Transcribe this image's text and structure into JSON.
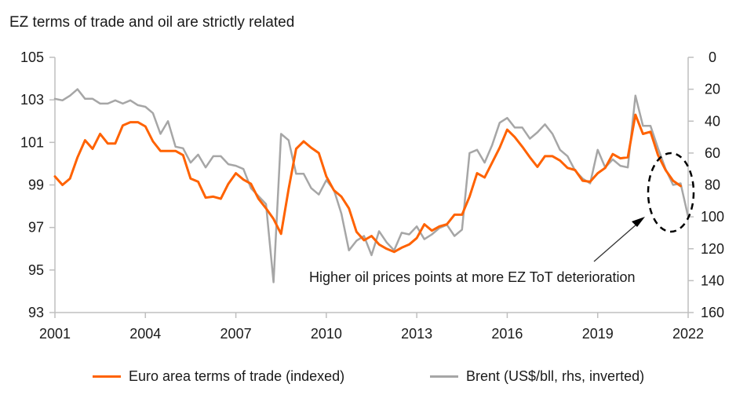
{
  "chart_data": {
    "type": "line",
    "title": "EZ terms of trade and oil are strictly related",
    "x_range": [
      2001,
      2022
    ],
    "x_ticks": [
      "2001",
      "2004",
      "2007",
      "2010",
      "2013",
      "2016",
      "2019",
      "2022"
    ],
    "y_left": {
      "range": [
        93,
        105
      ],
      "ticks": [
        "105",
        "103",
        "101",
        "99",
        "97",
        "95",
        "93"
      ]
    },
    "y_right": {
      "range": [
        0,
        160
      ],
      "inverted": true,
      "ticks": [
        "0",
        "20",
        "40",
        "60",
        "80",
        "100",
        "120",
        "140",
        "160"
      ]
    },
    "grid": false,
    "legend_position": "bottom",
    "series": [
      {
        "name": "Euro area terms of trade (indexed)",
        "axis": "left",
        "color": "#ff6200",
        "x": [
          2001.0,
          2001.25,
          2001.5,
          2001.75,
          2002.0,
          2002.25,
          2002.5,
          2002.75,
          2003.0,
          2003.25,
          2003.5,
          2003.75,
          2004.0,
          2004.25,
          2004.5,
          2004.75,
          2005.0,
          2005.25,
          2005.5,
          2005.75,
          2006.0,
          2006.25,
          2006.5,
          2006.75,
          2007.0,
          2007.25,
          2007.5,
          2007.75,
          2008.0,
          2008.25,
          2008.5,
          2008.75,
          2009.0,
          2009.25,
          2009.5,
          2009.75,
          2010.0,
          2010.25,
          2010.5,
          2010.75,
          2011.0,
          2011.25,
          2011.5,
          2011.75,
          2012.0,
          2012.25,
          2012.5,
          2012.75,
          2013.0,
          2013.25,
          2013.5,
          2013.75,
          2014.0,
          2014.25,
          2014.5,
          2014.75,
          2015.0,
          2015.25,
          2015.5,
          2015.75,
          2016.0,
          2016.25,
          2016.5,
          2016.75,
          2017.0,
          2017.25,
          2017.5,
          2017.75,
          2018.0,
          2018.25,
          2018.5,
          2018.75,
          2019.0,
          2019.25,
          2019.5,
          2019.75,
          2020.0,
          2020.25,
          2020.5,
          2020.75,
          2021.0,
          2021.25,
          2021.5,
          2021.75,
          2022.0
        ],
        "values": [
          99.4,
          99.0,
          99.3,
          100.3,
          101.1,
          100.7,
          101.4,
          100.95,
          100.95,
          101.8,
          101.95,
          101.95,
          101.75,
          101.05,
          100.6,
          100.6,
          100.6,
          100.4,
          99.3,
          99.15,
          98.4,
          98.45,
          98.35,
          99.05,
          99.55,
          99.25,
          99.05,
          98.35,
          97.9,
          97.4,
          96.7,
          98.8,
          100.7,
          101.05,
          100.75,
          100.5,
          99.4,
          98.75,
          98.45,
          97.9,
          96.8,
          96.4,
          96.6,
          96.2,
          96.0,
          95.85,
          96.05,
          96.2,
          96.5,
          97.15,
          96.85,
          97.05,
          97.15,
          97.6,
          97.6,
          98.45,
          99.55,
          99.35,
          100.05,
          100.75,
          101.6,
          101.25,
          100.8,
          100.3,
          99.85,
          100.35,
          100.35,
          100.15,
          99.8,
          99.7,
          99.2,
          99.15,
          99.55,
          99.8,
          100.45,
          100.25,
          100.3,
          102.3,
          101.4,
          101.5,
          100.4,
          99.7,
          99.2,
          98.95,
          null
        ]
      },
      {
        "name": "Brent (US$/bll, rhs, inverted)",
        "axis": "right",
        "color": "#a6a6a6",
        "x": [
          2001.0,
          2001.25,
          2001.5,
          2001.75,
          2002.0,
          2002.25,
          2002.5,
          2002.75,
          2003.0,
          2003.25,
          2003.5,
          2003.75,
          2004.0,
          2004.25,
          2004.5,
          2004.75,
          2005.0,
          2005.25,
          2005.5,
          2005.75,
          2006.0,
          2006.25,
          2006.5,
          2006.75,
          2007.0,
          2007.25,
          2007.5,
          2007.75,
          2008.0,
          2008.25,
          2008.5,
          2008.75,
          2009.0,
          2009.25,
          2009.5,
          2009.75,
          2010.0,
          2010.25,
          2010.5,
          2010.75,
          2011.0,
          2011.25,
          2011.5,
          2011.75,
          2012.0,
          2012.25,
          2012.5,
          2012.75,
          2013.0,
          2013.25,
          2013.5,
          2013.75,
          2014.0,
          2014.25,
          2014.5,
          2014.75,
          2015.0,
          2015.25,
          2015.5,
          2015.75,
          2016.0,
          2016.25,
          2016.5,
          2016.75,
          2017.0,
          2017.25,
          2017.5,
          2017.75,
          2018.0,
          2018.25,
          2018.5,
          2018.75,
          2019.0,
          2019.25,
          2019.5,
          2019.75,
          2020.0,
          2020.25,
          2020.5,
          2020.75,
          2021.0,
          2021.25,
          2021.5,
          2021.75,
          2022.0
        ],
        "values": [
          26,
          27,
          24,
          20,
          26,
          26,
          29,
          29,
          27,
          29,
          27,
          30,
          31,
          35,
          48,
          40,
          56,
          57,
          66,
          61,
          69,
          62,
          62,
          67,
          68,
          70,
          82,
          87,
          92,
          141,
          48,
          52,
          73,
          73,
          82,
          86,
          77,
          83,
          98,
          121,
          115,
          112,
          124,
          109,
          116,
          121,
          110,
          111,
          106,
          114,
          111,
          107,
          105,
          112,
          108,
          60,
          58,
          66,
          55,
          41,
          38,
          44,
          44,
          51,
          47,
          42,
          48,
          58,
          62,
          71,
          76,
          79,
          58,
          69,
          64,
          68,
          69,
          24,
          43,
          43,
          57,
          70,
          80,
          79,
          100
        ]
      }
    ],
    "annotations": [
      {
        "text": "Higher oil prices points at more EZ ToT deterioration"
      }
    ],
    "legend": {
      "items": [
        {
          "label": "Euro area terms of trade (indexed)",
          "color": "#ff6200"
        },
        {
          "label": "Brent (US$/bll, rhs, inverted)",
          "color": "#a6a6a6"
        }
      ]
    }
  }
}
